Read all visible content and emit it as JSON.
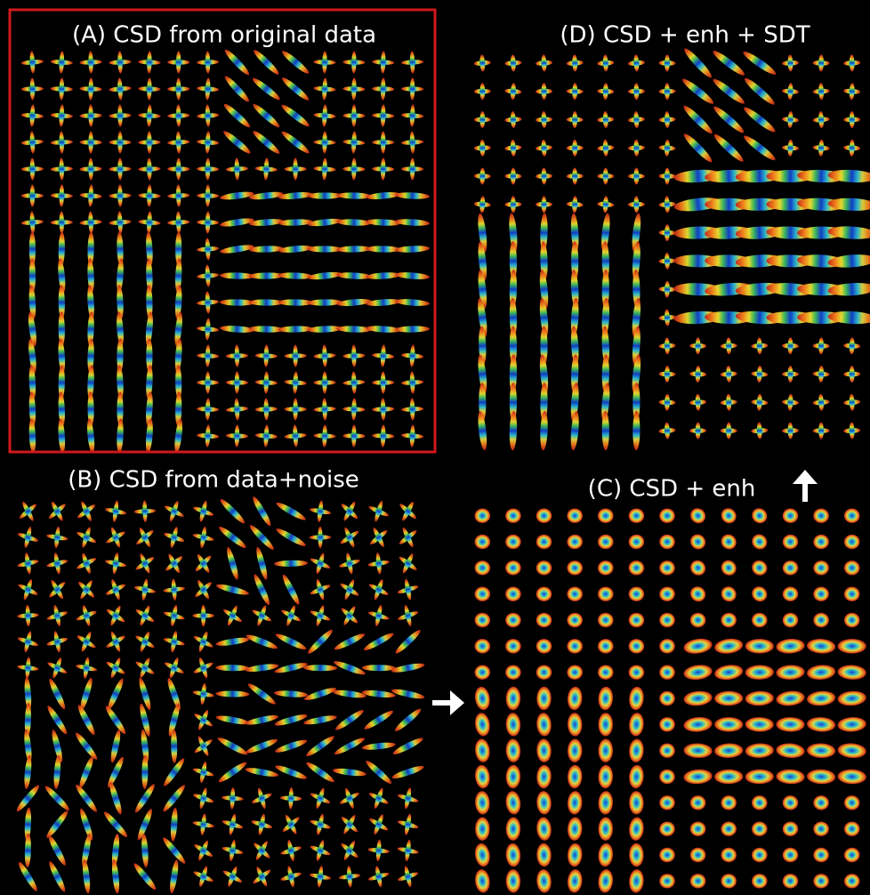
{
  "panels": [
    {
      "title": "(A) CSD from original data"
    },
    {
      "title": "(D) CSD + enh + SDT"
    },
    {
      "title": "(B) CSD from data+noise"
    },
    {
      "title": "(C) CSD + enh"
    }
  ]
}
